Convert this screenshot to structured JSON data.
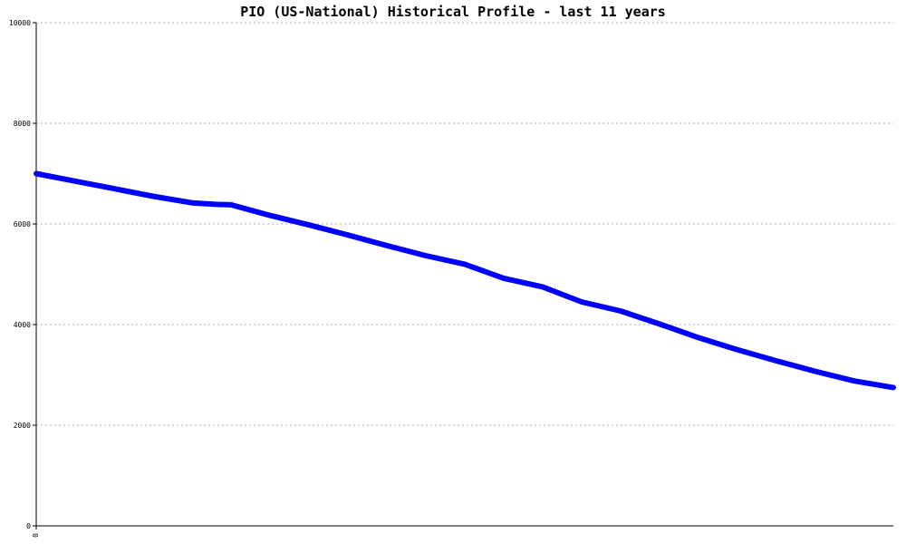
{
  "chart_data": {
    "type": "line",
    "title": "PIO (US-National) Historical Profile - last 11 years",
    "xlabel": "",
    "ylabel": "",
    "ylim": [
      0,
      10000
    ],
    "xlim": [
      0,
      11
    ],
    "y_ticks": [
      0,
      2000,
      4000,
      6000,
      8000,
      10000
    ],
    "y_tick_labels": [
      "0",
      "2000",
      "4000",
      "6000",
      "8000",
      "10000"
    ],
    "x_tick_labels": [
      "0"
    ],
    "grid": "horizontal dotted",
    "legend": "none",
    "series": [
      {
        "color": "#0000ff",
        "x": [
          0,
          0.5,
          1,
          1.5,
          2,
          2.3,
          2.5,
          3,
          3.5,
          4,
          4.5,
          5,
          5.5,
          6,
          6.5,
          7,
          7.5,
          8,
          8.5,
          9,
          9.5,
          10,
          10.5,
          11
        ],
        "y": [
          7000,
          6850,
          6700,
          6550,
          6420,
          6390,
          6380,
          6170,
          5980,
          5780,
          5570,
          5370,
          5200,
          4920,
          4750,
          4450,
          4270,
          4010,
          3740,
          3500,
          3280,
          3070,
          2880,
          2750
        ]
      }
    ]
  }
}
